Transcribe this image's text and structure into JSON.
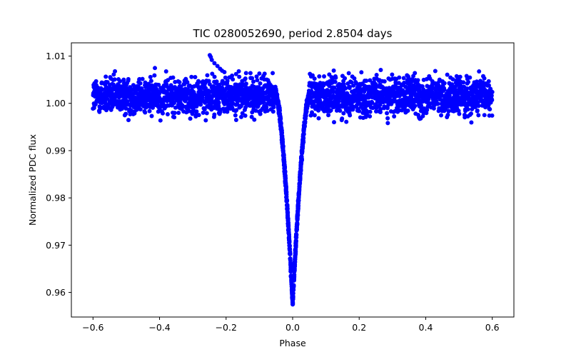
{
  "chart_data": {
    "type": "scatter",
    "title": "TIC 0280052690, period 2.8504 days",
    "xlabel": "Phase",
    "ylabel": "Normalized PDC flux",
    "xlim": [
      -0.665,
      0.665
    ],
    "ylim": [
      0.9548,
      1.0128
    ],
    "xticks": [
      -0.6,
      -0.4,
      -0.2,
      0.0,
      0.2,
      0.4,
      0.6
    ],
    "xtick_labels": [
      "−0.6",
      "−0.4",
      "−0.2",
      "0.0",
      "0.2",
      "0.4",
      "0.6"
    ],
    "yticks": [
      0.96,
      0.97,
      0.98,
      0.99,
      1.0,
      1.01
    ],
    "ytick_labels": [
      "0.96",
      "0.97",
      "0.98",
      "0.99",
      "1.00",
      "1.01"
    ],
    "grid": false,
    "marker_color": "#0000ff",
    "phase_range": [
      -0.6,
      0.6
    ],
    "baseline_flux": 1.0015,
    "baseline_scatter": 0.0035,
    "transit_center": 0.0,
    "transit_depth_min_flux": 0.9575,
    "transit_half_width": 0.05,
    "outlier_points": [
      {
        "x": -0.249,
        "y": 1.0102
      },
      {
        "x": -0.246,
        "y": 1.0098
      },
      {
        "x": -0.243,
        "y": 1.0092
      },
      {
        "x": -0.235,
        "y": 1.0085
      },
      {
        "x": -0.226,
        "y": 1.0079
      },
      {
        "x": -0.218,
        "y": 1.0073
      },
      {
        "x": -0.212,
        "y": 1.0069
      },
      {
        "x": -0.205,
        "y": 1.0066
      },
      {
        "x": -0.19,
        "y": 1.0055
      },
      {
        "x": -0.17,
        "y": 1.0062
      },
      {
        "x": -0.14,
        "y": 1.0064
      },
      {
        "x": -0.1,
        "y": 1.0063
      },
      {
        "x": -0.06,
        "y": 1.0064
      },
      {
        "x": 0.06,
        "y": 1.0059
      },
      {
        "x": 0.08,
        "y": 1.0057
      },
      {
        "x": 0.15,
        "y": 1.0058
      },
      {
        "x": 0.3,
        "y": 1.0052
      },
      {
        "x": 0.32,
        "y": 0.9985
      },
      {
        "x": 0.38,
        "y": 0.997
      },
      {
        "x": 0.385,
        "y": 0.9968
      },
      {
        "x": 0.49,
        "y": 0.9985
      }
    ]
  }
}
